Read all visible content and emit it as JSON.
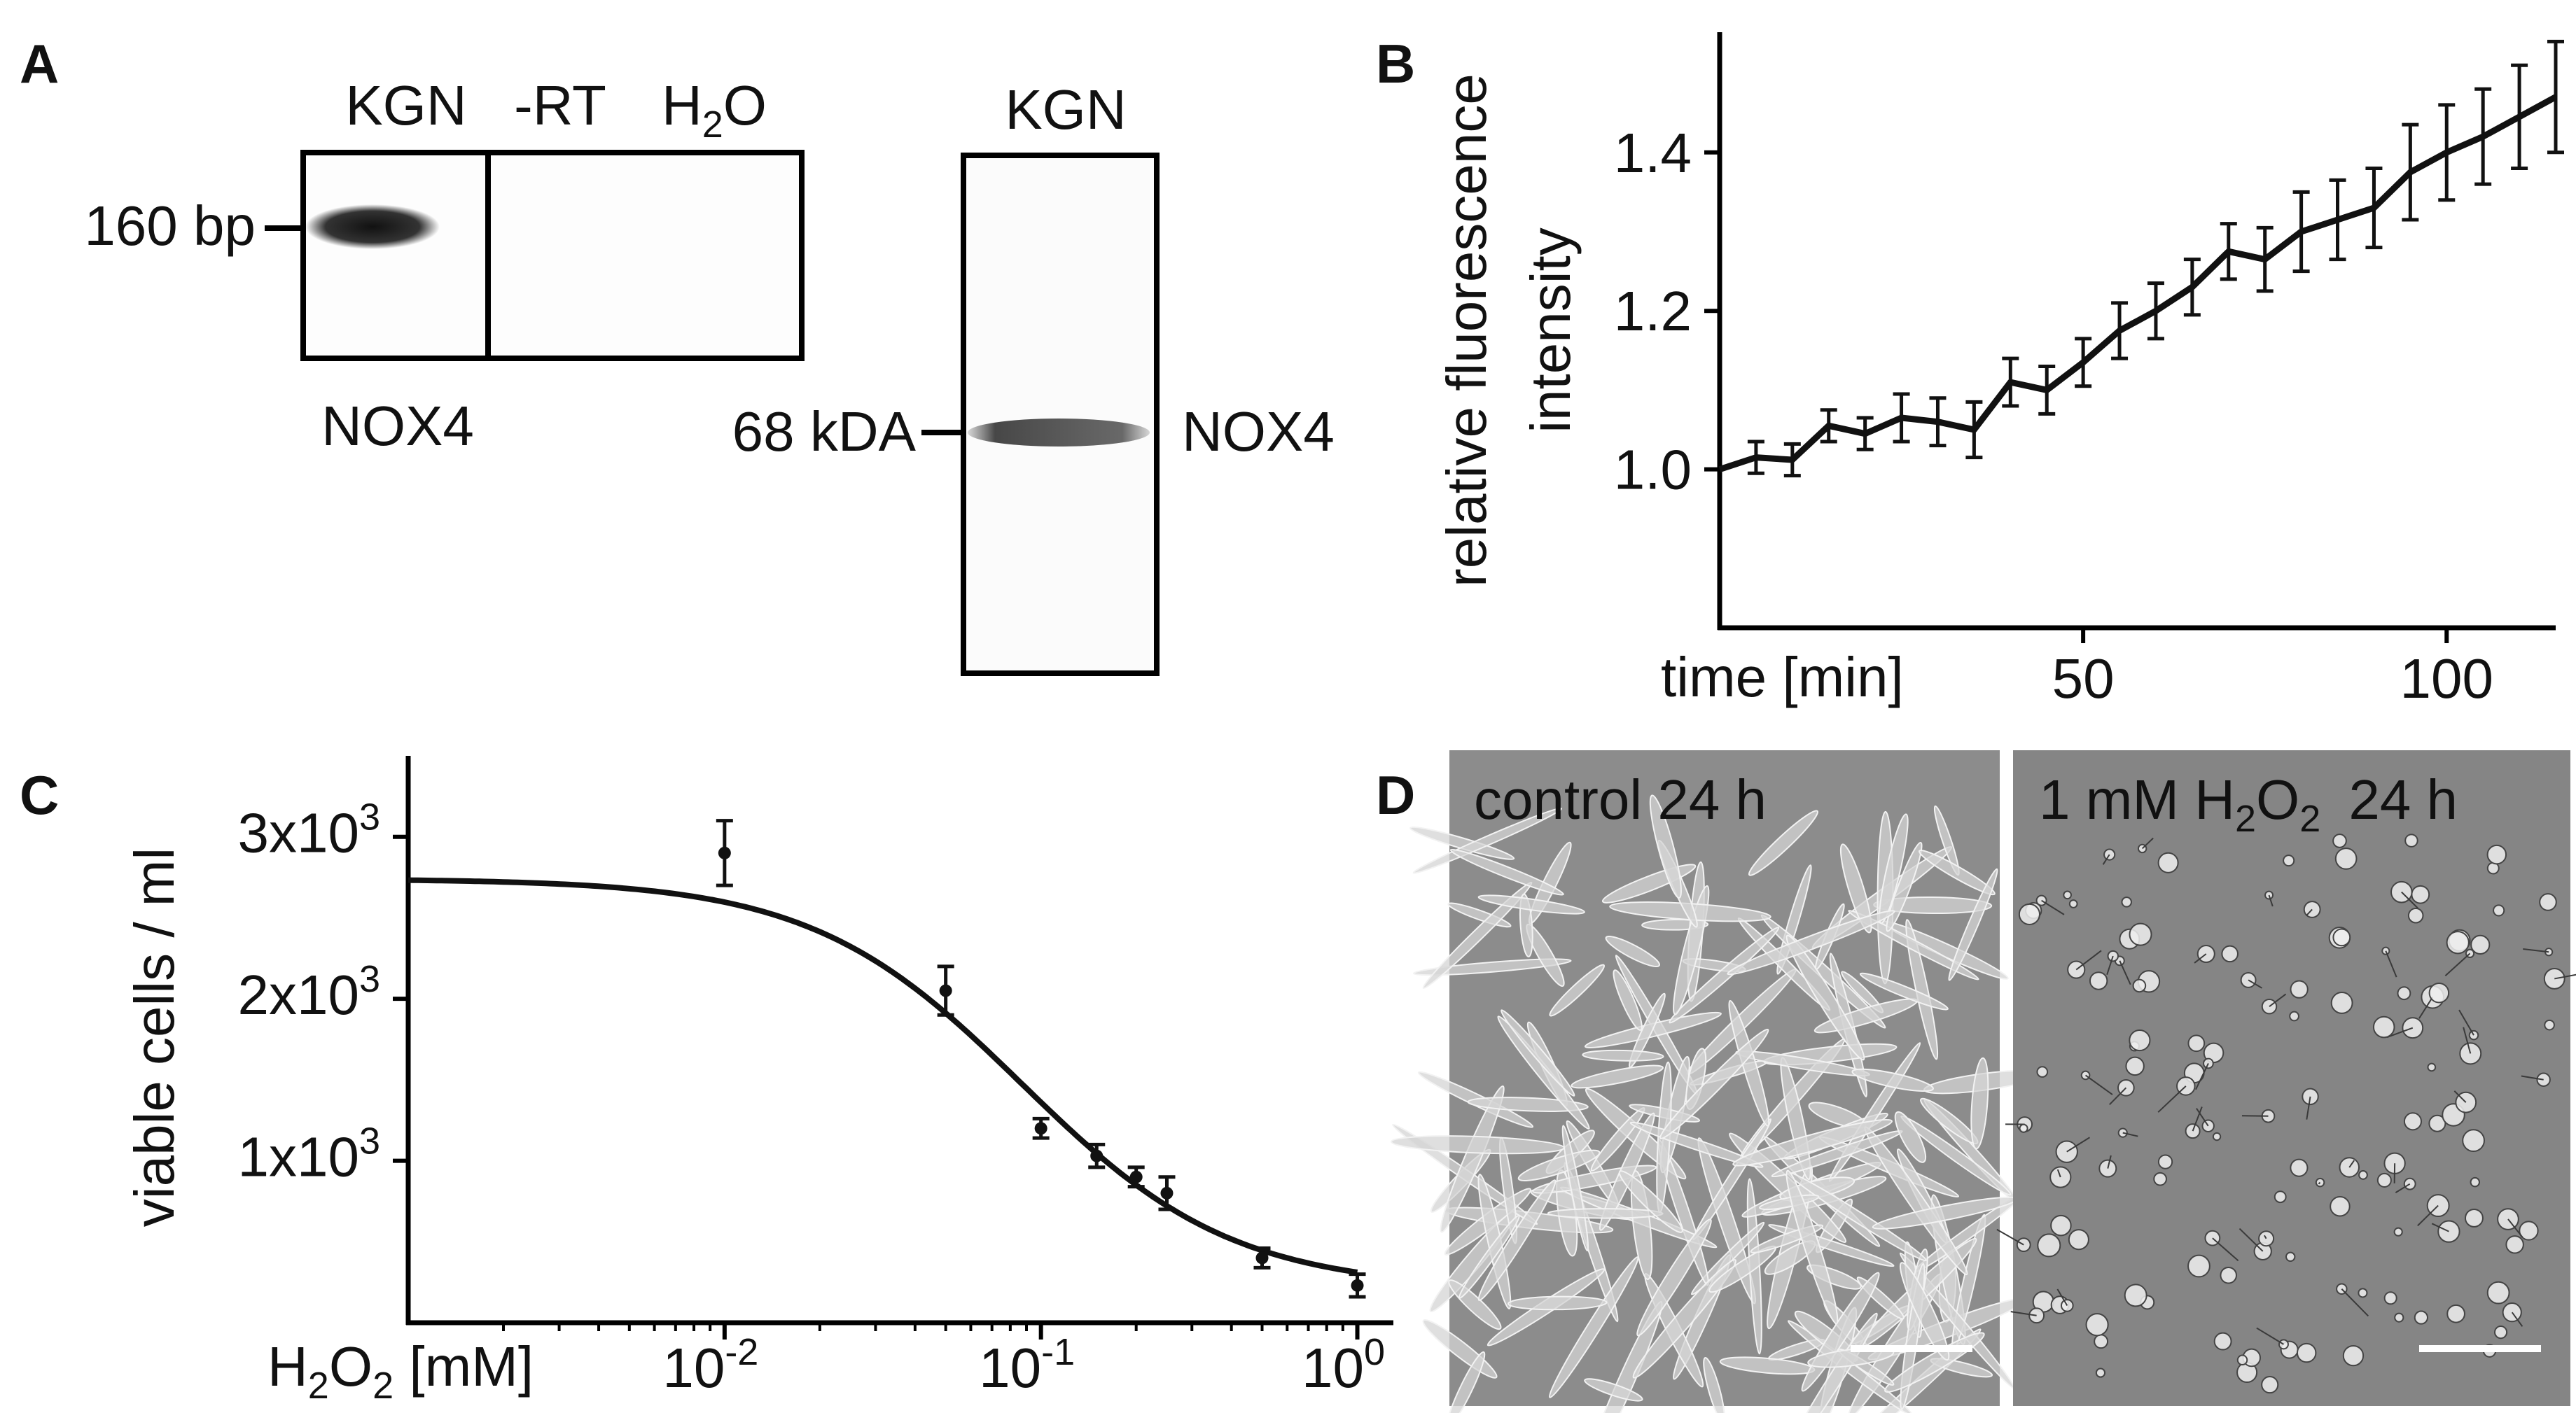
{
  "panel_labels": [
    "A",
    "B",
    "C",
    "D"
  ],
  "panel_a": {
    "pcr_lanes": [
      "KGN",
      "-RT"
    ],
    "water_lane": {
      "base": "H",
      "sub": "2",
      "tail": "O"
    },
    "pcr_marker": "160 bp",
    "pcr_target": "NOX4",
    "wb_lane": "KGN",
    "wb_marker": "68 kDA",
    "wb_target": "NOX4"
  },
  "panel_d": {
    "control_label": "control 24 h",
    "h2o2_label": {
      "pre": "1 mM H",
      "sub1": "2",
      "mid": "O",
      "sub2": "2",
      "post": "24 h"
    }
  },
  "chart_data": [
    {
      "panel": "B",
      "type": "line",
      "xlabel": "time [min]",
      "ylabel_line1": "relative fluorescence",
      "ylabel_line2": "intensity",
      "x_ticks": [
        50,
        100
      ],
      "y_ticks": [
        1.0,
        1.2,
        1.4
      ],
      "xlim": [
        0,
        115
      ],
      "ylim": [
        0.8,
        1.55
      ],
      "grid": false,
      "legend": "none",
      "series": [
        {
          "x": [
            0,
            5,
            10,
            15,
            20,
            25,
            30,
            35,
            40,
            45,
            50,
            55,
            60,
            65,
            70,
            75,
            80,
            85,
            90,
            95,
            100,
            105,
            110,
            115
          ],
          "y": [
            1.0,
            1.015,
            1.012,
            1.055,
            1.045,
            1.065,
            1.06,
            1.05,
            1.11,
            1.1,
            1.135,
            1.175,
            1.2,
            1.23,
            1.275,
            1.265,
            1.3,
            1.315,
            1.33,
            1.375,
            1.4,
            1.42,
            1.445,
            1.47
          ],
          "err": [
            0,
            0.02,
            0.02,
            0.02,
            0.02,
            0.03,
            0.03,
            0.035,
            0.03,
            0.03,
            0.03,
            0.035,
            0.035,
            0.035,
            0.035,
            0.04,
            0.05,
            0.05,
            0.05,
            0.06,
            0.06,
            0.06,
            0.065,
            0.07
          ]
        }
      ]
    },
    {
      "panel": "C",
      "type": "scatter",
      "xscale": "log",
      "xlabel": {
        "base": "H",
        "sub": "2",
        "mid": "O",
        "sub2": "2",
        "tail": " [mM]"
      },
      "ylabel": "viable cells / ml",
      "x_ticks": [
        {
          "value": 0.01,
          "base": "10",
          "exp": "-2"
        },
        {
          "value": 0.1,
          "base": "10",
          "exp": "-1"
        },
        {
          "value": 1,
          "base": "10",
          "exp": "0"
        }
      ],
      "y_ticks": [
        {
          "value": 1000,
          "base": "1x10",
          "exp": "3"
        },
        {
          "value": 2000,
          "base": "2x10",
          "exp": "3"
        },
        {
          "value": 3000,
          "base": "3x10",
          "exp": "3"
        }
      ],
      "xlim": [
        0.001,
        1.3
      ],
      "ylim": [
        0,
        3500
      ],
      "grid": false,
      "legend": "none",
      "points": {
        "x": [
          0.01,
          0.05,
          0.1,
          0.15,
          0.2,
          0.25,
          0.5,
          1.0
        ],
        "y": [
          2900,
          2050,
          1200,
          1030,
          900,
          800,
          400,
          230
        ],
        "err": [
          200,
          150,
          60,
          70,
          60,
          100,
          60,
          70
        ]
      },
      "fit": {
        "top": 2740,
        "bottom": 210,
        "ec50": 0.087,
        "hill": 1.3
      }
    }
  ]
}
